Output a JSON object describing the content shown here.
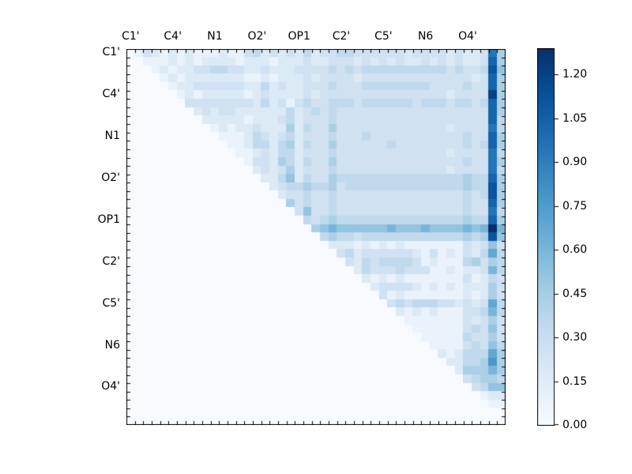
{
  "chart_data": {
    "type": "heatmap",
    "title": "",
    "xlabel": "",
    "ylabel": "",
    "colormap": "Blues",
    "vmin": 0.0,
    "vmax": 1.29,
    "grid_size": 45,
    "triangle": "upper",
    "x_axis_position": "top",
    "y_axis_position": "left",
    "axis_tick_labels": [
      "C1'",
      "C4'",
      "N1",
      "O2'",
      "OP1",
      "C2'",
      "C5'",
      "N6",
      "O4'"
    ],
    "axis_tick_label_cell_indices": [
      0,
      5,
      10,
      15,
      20,
      25,
      30,
      35,
      40
    ],
    "background_cell_color": "#f7fbff",
    "matrix_encoding": "45 rows (top to bottom) of 45 hex digits (columns left to right); cell value = digit/15 * 1.29; 0 = empty/white (lower triangle and diagonal are empty)",
    "matrix_rows": [
      "0132121211121134232324233443333332333323223b5",
      "0011121212222122212223223332323232232323223c5",
      "0001212233443322322233334343444444444434334d6",
      "0000121222222211212223233332333333333333323c5",
      "0000012233333322423223334333444444443333433c5",
      "0000001212222212322223233333333333333323333e5",
      "0000000333333332423134334443444444344434434c5",
      "0000000023233222222423434333333333333333333c5",
      "0000000002222212223423334333333333333333333c4",
      "0000000000121223222524335333333333333323333b4",
      "0000000000011124323423334333433333333333433c5",
      "0000000000001124424524335333333433333333434c5",
      "0000000000000112324423334333333333333323333b4",
      "0000000000000013325424335333333333333333433b5",
      "0000000000000002323523334333333333333323333b4",
      "0000000000000000224624335444444444444444544c5",
      "0000000000000000023445445344444444444444544d5",
      "0000000000000000002334334333333333333333434d5",
      "0000000000000000000534334333333333333333433c5",
      "0000000000000000000036334333333333333333433b4",
      "0000000000000000000004345444444444444444544c5",
      "0000000000000000000000567666666766676666767f7",
      "0000000000000000000000045443444444444444545d6",
      "000000000000000000000000222121212111111132363",
      "000000000000000000000000034233333321312132484",
      "000000000000000000000000003243444431211145354",
      "000000000000000000000000000243334333112122374",
      "000000000000000000000000000021212111111131243",
      "000000000000000000000000000002333321212122253",
      "000000000000000000000000000000312111111121253",
      "000000000000000000000000000000034344433232384",
      "000000000000000000000000000000002121211133474",
      "000000000000000000000000000000000111111132353",
      "000000000000000000000000000000000011111134363",
      "000000000000000000000000000000000001111143353",
      "000000000000000000000000000000000000111134364",
      "000000000000000000000000000000000000021244485",
      "000000000000000000000000000000000000002244595",
      "000000000000000000000000000000000000000255575",
      "000000000000000000000000000000000000000034554",
      "000000000000000000000000000000000000000003466",
      "000000000000000000000000000000000000000000122",
      "000000000000000000000000000000000000000000011",
      "000000000000000000000000000000000000000000000",
      "000000000000000000000000000000000000000000000"
    ],
    "colormap_stops": [
      {
        "pos": 0.0,
        "color": "#f7fbff"
      },
      {
        "pos": 0.125,
        "color": "#deebf7"
      },
      {
        "pos": 0.25,
        "color": "#c6dbef"
      },
      {
        "pos": 0.375,
        "color": "#9ecae1"
      },
      {
        "pos": 0.5,
        "color": "#6baed6"
      },
      {
        "pos": 0.625,
        "color": "#4292c6"
      },
      {
        "pos": 0.75,
        "color": "#2171b5"
      },
      {
        "pos": 0.875,
        "color": "#08519c"
      },
      {
        "pos": 1.0,
        "color": "#08306b"
      }
    ],
    "colorbar": {
      "orientation": "vertical",
      "tick_labels": [
        "0.00",
        "0.15",
        "0.30",
        "0.45",
        "0.60",
        "0.75",
        "0.90",
        "1.05",
        "1.20"
      ],
      "tick_values": [
        0.0,
        0.15,
        0.3,
        0.45,
        0.6,
        0.75,
        0.9,
        1.05,
        1.2
      ]
    },
    "frame_color": "#000000",
    "legend": "none",
    "grid": "off"
  }
}
